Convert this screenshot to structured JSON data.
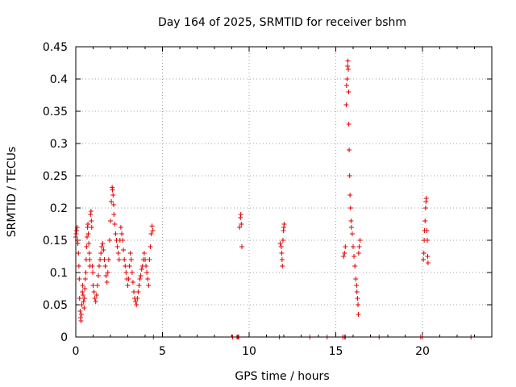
{
  "chart_data": {
    "type": "scatter",
    "title": "Day 164 of 2025, SRMTID for receiver bshm",
    "xlabel": "GPS time / hours",
    "ylabel": "SRMTID / TECUs",
    "xlim": [
      0,
      24
    ],
    "ylim": [
      0,
      0.45
    ],
    "xticks": [
      0,
      5,
      10,
      15,
      20
    ],
    "xtick_labels": [
      "0",
      "5",
      "10",
      "15",
      "20"
    ],
    "yticks": [
      0,
      0.05,
      0.1,
      0.15,
      0.2,
      0.25,
      0.3,
      0.35,
      0.4,
      0.45
    ],
    "ytick_labels": [
      "0",
      "0.05",
      "0.1",
      "0.15",
      "0.2",
      "0.25",
      "0.3",
      "0.35",
      "0.4",
      "0.45"
    ],
    "grid": true,
    "marker": "plus",
    "color": "#e00000",
    "series": [
      {
        "name": "SRMTID",
        "points": [
          [
            0.0,
            0.155
          ],
          [
            0.02,
            0.16
          ],
          [
            0.05,
            0.165
          ],
          [
            0.08,
            0.17
          ],
          [
            0.1,
            0.15
          ],
          [
            0.12,
            0.145
          ],
          [
            0.15,
            0.13
          ],
          [
            0.18,
            0.11
          ],
          [
            0.2,
            0.09
          ],
          [
            0.22,
            0.06
          ],
          [
            0.25,
            0.04
          ],
          [
            0.28,
            0.03
          ],
          [
            0.3,
            0.025
          ],
          [
            0.32,
            0.035
          ],
          [
            0.35,
            0.05
          ],
          [
            0.38,
            0.07
          ],
          [
            0.4,
            0.08
          ],
          [
            0.42,
            0.065
          ],
          [
            0.45,
            0.055
          ],
          [
            0.48,
            0.045
          ],
          [
            0.5,
            0.06
          ],
          [
            0.52,
            0.075
          ],
          [
            0.55,
            0.09
          ],
          [
            0.58,
            0.1
          ],
          [
            0.6,
            0.12
          ],
          [
            0.62,
            0.14
          ],
          [
            0.65,
            0.155
          ],
          [
            0.68,
            0.17
          ],
          [
            0.7,
            0.175
          ],
          [
            0.72,
            0.16
          ],
          [
            0.75,
            0.145
          ],
          [
            0.78,
            0.13
          ],
          [
            0.8,
            0.12
          ],
          [
            0.82,
            0.11
          ],
          [
            0.85,
            0.19
          ],
          [
            0.88,
            0.195
          ],
          [
            0.9,
            0.18
          ],
          [
            0.92,
            0.17
          ],
          [
            0.95,
            0.11
          ],
          [
            0.98,
            0.1
          ],
          [
            1.0,
            0.08
          ],
          [
            1.05,
            0.07
          ],
          [
            1.1,
            0.06
          ],
          [
            1.15,
            0.055
          ],
          [
            1.2,
            0.065
          ],
          [
            1.25,
            0.08
          ],
          [
            1.3,
            0.095
          ],
          [
            1.35,
            0.11
          ],
          [
            1.4,
            0.12
          ],
          [
            1.45,
            0.13
          ],
          [
            1.5,
            0.14
          ],
          [
            1.55,
            0.145
          ],
          [
            1.6,
            0.135
          ],
          [
            1.65,
            0.12
          ],
          [
            1.7,
            0.11
          ],
          [
            1.75,
            0.095
          ],
          [
            1.8,
            0.085
          ],
          [
            1.85,
            0.1
          ],
          [
            1.9,
            0.12
          ],
          [
            1.95,
            0.15
          ],
          [
            2.0,
            0.18
          ],
          [
            2.05,
            0.21
          ],
          [
            2.1,
            0.232
          ],
          [
            2.12,
            0.228
          ],
          [
            2.15,
            0.22
          ],
          [
            2.18,
            0.205
          ],
          [
            2.2,
            0.19
          ],
          [
            2.25,
            0.175
          ],
          [
            2.3,
            0.16
          ],
          [
            2.35,
            0.15
          ],
          [
            2.4,
            0.14
          ],
          [
            2.45,
            0.13
          ],
          [
            2.5,
            0.12
          ],
          [
            2.55,
            0.15
          ],
          [
            2.6,
            0.17
          ],
          [
            2.65,
            0.16
          ],
          [
            2.7,
            0.15
          ],
          [
            2.75,
            0.135
          ],
          [
            2.8,
            0.12
          ],
          [
            2.85,
            0.11
          ],
          [
            2.9,
            0.1
          ],
          [
            2.95,
            0.09
          ],
          [
            3.0,
            0.08
          ],
          [
            3.05,
            0.09
          ],
          [
            3.1,
            0.11
          ],
          [
            3.15,
            0.13
          ],
          [
            3.2,
            0.12
          ],
          [
            3.25,
            0.1
          ],
          [
            3.3,
            0.085
          ],
          [
            3.35,
            0.07
          ],
          [
            3.4,
            0.06
          ],
          [
            3.45,
            0.055
          ],
          [
            3.5,
            0.05
          ],
          [
            3.55,
            0.06
          ],
          [
            3.6,
            0.07
          ],
          [
            3.65,
            0.08
          ],
          [
            3.7,
            0.09
          ],
          [
            3.75,
            0.095
          ],
          [
            3.8,
            0.105
          ],
          [
            3.85,
            0.11
          ],
          [
            3.9,
            0.12
          ],
          [
            3.95,
            0.13
          ],
          [
            4.0,
            0.12
          ],
          [
            4.05,
            0.11
          ],
          [
            4.1,
            0.1
          ],
          [
            4.15,
            0.09
          ],
          [
            4.2,
            0.08
          ],
          [
            4.25,
            0.12
          ],
          [
            4.3,
            0.14
          ],
          [
            4.35,
            0.16
          ],
          [
            4.4,
            0.172
          ],
          [
            4.45,
            0.165
          ],
          [
            4.48,
            0.0
          ],
          [
            9.05,
            0.0
          ],
          [
            9.3,
            0.0
          ],
          [
            9.35,
            0.0
          ],
          [
            9.4,
            0.0
          ],
          [
            9.45,
            0.17
          ],
          [
            9.5,
            0.185
          ],
          [
            9.52,
            0.19
          ],
          [
            9.55,
            0.175
          ],
          [
            9.58,
            0.14
          ],
          [
            11.75,
            0.0
          ],
          [
            11.8,
            0.145
          ],
          [
            11.85,
            0.14
          ],
          [
            11.88,
            0.13
          ],
          [
            11.9,
            0.12
          ],
          [
            11.92,
            0.11
          ],
          [
            11.95,
            0.15
          ],
          [
            11.98,
            0.165
          ],
          [
            12.0,
            0.17
          ],
          [
            12.02,
            0.175
          ],
          [
            13.5,
            0.0
          ],
          [
            14.5,
            0.0
          ],
          [
            15.4,
            0.0
          ],
          [
            15.5,
            0.0
          ],
          [
            15.55,
            0.0
          ],
          [
            15.45,
            0.125
          ],
          [
            15.5,
            0.13
          ],
          [
            15.55,
            0.14
          ],
          [
            15.6,
            0.36
          ],
          [
            15.62,
            0.39
          ],
          [
            15.65,
            0.4
          ],
          [
            15.68,
            0.42
          ],
          [
            15.7,
            0.428
          ],
          [
            15.72,
            0.415
          ],
          [
            15.74,
            0.38
          ],
          [
            15.75,
            0.33
          ],
          [
            15.77,
            0.29
          ],
          [
            15.8,
            0.25
          ],
          [
            15.82,
            0.22
          ],
          [
            15.85,
            0.2
          ],
          [
            15.88,
            0.18
          ],
          [
            15.9,
            0.17
          ],
          [
            15.95,
            0.16
          ],
          [
            16.0,
            0.14
          ],
          [
            16.05,
            0.125
          ],
          [
            16.1,
            0.11
          ],
          [
            16.15,
            0.09
          ],
          [
            16.2,
            0.08
          ],
          [
            16.22,
            0.07
          ],
          [
            16.25,
            0.06
          ],
          [
            16.28,
            0.05
          ],
          [
            16.3,
            0.035
          ],
          [
            16.32,
            0.13
          ],
          [
            16.35,
            0.14
          ],
          [
            16.4,
            0.15
          ],
          [
            17.5,
            0.0
          ],
          [
            19.9,
            0.0
          ],
          [
            20.0,
            0.0
          ],
          [
            20.05,
            0.12
          ],
          [
            20.08,
            0.13
          ],
          [
            20.1,
            0.15
          ],
          [
            20.12,
            0.165
          ],
          [
            20.15,
            0.18
          ],
          [
            20.18,
            0.2
          ],
          [
            20.2,
            0.21
          ],
          [
            20.22,
            0.215
          ],
          [
            20.25,
            0.165
          ],
          [
            20.28,
            0.15
          ],
          [
            20.3,
            0.125
          ],
          [
            20.32,
            0.115
          ],
          [
            22.8,
            0.0
          ]
        ]
      }
    ]
  }
}
